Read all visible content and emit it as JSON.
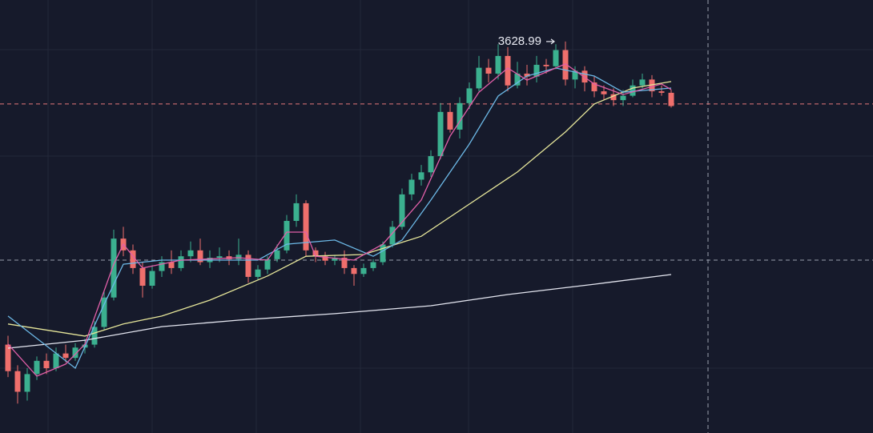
{
  "chart_data": {
    "type": "candlestick",
    "ylim": [
      2300,
      3770
    ],
    "up_color": "#3bb08f",
    "down_color": "#ef6f6c",
    "annotation": {
      "text": "3628.99",
      "candle": 58
    },
    "open": [
      2600,
      2510,
      2440,
      2500,
      2545,
      2520,
      2570,
      2555,
      2590,
      2600,
      2660,
      2760,
      2960,
      2920,
      2860,
      2800,
      2850,
      2880,
      2860,
      2900,
      2920,
      2880,
      2895,
      2900,
      2890,
      2905,
      2830,
      2855,
      2890,
      2920,
      3020,
      3080,
      2920,
      2900,
      2885,
      2895,
      2860,
      2840,
      2860,
      2880,
      2940,
      3000,
      3110,
      3160,
      3185,
      3240,
      3390,
      3330,
      3420,
      3470,
      3540,
      3520,
      3580,
      3480,
      3520,
      3510,
      3550,
      3545,
      3600,
      3500,
      3530,
      3490,
      3460,
      3450,
      3430,
      3445,
      3480,
      3500,
      3460,
      3455
    ],
    "high": [
      2630,
      2530,
      2520,
      2560,
      2570,
      2590,
      2600,
      2605,
      2620,
      2680,
      2780,
      2990,
      3000,
      2940,
      2880,
      2870,
      2900,
      2920,
      2920,
      2950,
      2960,
      2920,
      2930,
      2920,
      2960,
      2920,
      2870,
      2900,
      2940,
      3040,
      3110,
      3090,
      2930,
      2915,
      2905,
      2920,
      2870,
      2875,
      2890,
      2950,
      3020,
      3130,
      3180,
      3210,
      3260,
      3420,
      3420,
      3440,
      3490,
      3580,
      3570,
      3620,
      3610,
      3560,
      3550,
      3580,
      3570,
      3620,
      3628.99,
      3545,
      3545,
      3510,
      3480,
      3470,
      3465,
      3500,
      3520,
      3515,
      3480,
      3465
    ],
    "low": [
      2490,
      2400,
      2410,
      2480,
      2500,
      2510,
      2540,
      2545,
      2570,
      2590,
      2650,
      2750,
      2900,
      2840,
      2760,
      2790,
      2830,
      2840,
      2850,
      2880,
      2870,
      2860,
      2880,
      2870,
      2870,
      2810,
      2820,
      2840,
      2880,
      2910,
      3000,
      2900,
      2880,
      2870,
      2870,
      2840,
      2800,
      2830,
      2850,
      2870,
      2930,
      2990,
      3090,
      3140,
      3170,
      3230,
      3320,
      3300,
      3400,
      3460,
      3490,
      3500,
      3460,
      3470,
      3480,
      3490,
      3520,
      3535,
      3480,
      3470,
      3460,
      3440,
      3430,
      3410,
      3410,
      3440,
      3470,
      3440,
      3445,
      3405
    ],
    "close": [
      2510,
      2440,
      2500,
      2545,
      2520,
      2570,
      2555,
      2590,
      2600,
      2660,
      2760,
      2960,
      2920,
      2860,
      2800,
      2850,
      2880,
      2860,
      2900,
      2920,
      2880,
      2895,
      2900,
      2890,
      2905,
      2830,
      2855,
      2890,
      2920,
      3020,
      3080,
      2920,
      2900,
      2885,
      2895,
      2860,
      2840,
      2860,
      2880,
      2940,
      3000,
      3110,
      3160,
      3185,
      3240,
      3390,
      3330,
      3420,
      3470,
      3540,
      3520,
      3580,
      3480,
      3520,
      3510,
      3550,
      3545,
      3600,
      3500,
      3530,
      3490,
      3460,
      3450,
      3430,
      3445,
      3480,
      3500,
      3460,
      3455,
      3410
    ],
    "price_lines": [
      {
        "value": 3417,
        "color": "#e8787a"
      },
      {
        "value": 2887,
        "color": "#9aa0ae"
      }
    ],
    "series": [
      {
        "color": "#e4e6f0",
        "x": [
          0,
          8,
          16,
          24,
          34,
          44,
          52,
          61,
          69
        ],
        "values": [
          2588,
          2615,
          2661,
          2683,
          2705,
          2732,
          2770,
          2805,
          2838
        ]
      },
      {
        "color": "#e6e69a",
        "x": [
          0,
          8,
          12,
          16,
          21,
          27,
          31,
          37,
          43,
          48,
          53,
          58,
          61,
          65,
          69
        ],
        "values": [
          2670,
          2629,
          2670,
          2697,
          2751,
          2833,
          2900,
          2906,
          2968,
          3077,
          3186,
          3322,
          3417,
          3471,
          3493
        ]
      },
      {
        "color": "#6cb8e6",
        "x": [
          0,
          7,
          10,
          12,
          16,
          21,
          26,
          29,
          34,
          38,
          41,
          44,
          48,
          51,
          54,
          57,
          61,
          64,
          69
        ],
        "values": [
          2697,
          2520,
          2737,
          2873,
          2887,
          2887,
          2887,
          2941,
          2955,
          2900,
          2955,
          3091,
          3281,
          3444,
          3512,
          3539,
          3512,
          3457,
          3471
        ]
      },
      {
        "color": "#e05fa8",
        "x": [
          0,
          3,
          6,
          8,
          11,
          12,
          14,
          18,
          24,
          27,
          29,
          31,
          32,
          36,
          39,
          43,
          46,
          49,
          52,
          54,
          58,
          61,
          64,
          68,
          69
        ],
        "values": [
          2602,
          2493,
          2534,
          2602,
          2873,
          2941,
          2860,
          2887,
          2895,
          2887,
          2982,
          2982,
          2900,
          2887,
          2941,
          3091,
          3308,
          3457,
          3539,
          3498,
          3553,
          3485,
          3449,
          3485,
          3466
        ]
      }
    ]
  }
}
